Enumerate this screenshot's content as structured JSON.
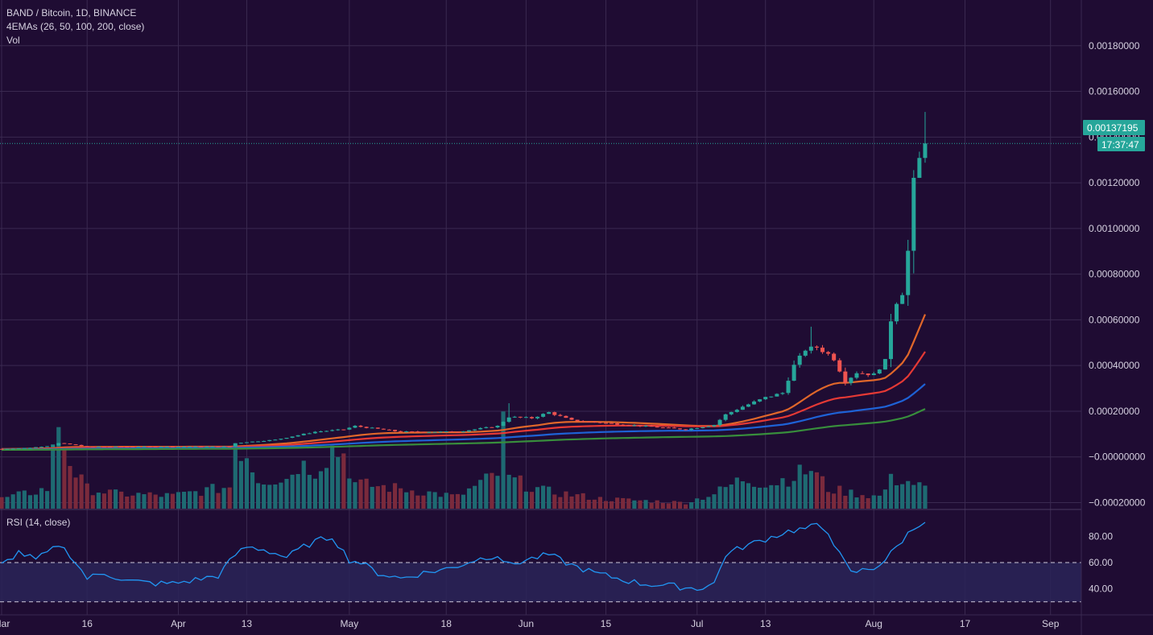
{
  "header": {
    "symbol_line": "BAND / Bitcoin, 1D, BINANCE",
    "ema_line": "4EMAs (26, 50, 100, 200, close)",
    "vol_line": "Vol"
  },
  "rsi_panel": {
    "label": "RSI (14, close)"
  },
  "price_tag": {
    "value": "0.00137195",
    "countdown": "17:37:47"
  },
  "colors": {
    "background": "#1f0c33",
    "grid": "#3a2950",
    "up": "#26a69a",
    "down": "#ef5350",
    "vol_up": "#1e6a72",
    "vol_down": "#7a2a3c",
    "rsi_line": "#2196f3",
    "rsi_band": "#2a2458",
    "ema_26": "#e0672a",
    "ema_50": "#e53935",
    "ema_100": "#1e62d6",
    "ema_200": "#388e3c",
    "text": "#d6d1e0"
  },
  "chart_data": [
    {
      "type": "candlestick",
      "title": "BAND / Bitcoin, 1D, BINANCE",
      "y_axis_labels": [
        "0.00180000",
        "0.00160000",
        "0.00140000",
        "0.00120000",
        "0.00100000",
        "0.00080000",
        "0.00060000",
        "0.00040000",
        "0.00020000",
        "−0.00000000",
        "−0.00020000"
      ],
      "y_axis_values": [
        0.0018,
        0.0016,
        0.0014,
        0.0012,
        0.001,
        0.0008,
        0.0006,
        0.0004,
        0.0002,
        0,
        -0.0002
      ],
      "ylim": [
        -0.00023,
        0.002
      ],
      "x_ticks": [
        {
          "label": "Mar",
          "day": 0
        },
        {
          "label": "16",
          "day": 15
        },
        {
          "label": "Apr",
          "day": 31
        },
        {
          "label": "13",
          "day": 43
        },
        {
          "label": "May",
          "day": 61
        },
        {
          "label": "18",
          "day": 78
        },
        {
          "label": "Jun",
          "day": 92
        },
        {
          "label": "15",
          "day": 106
        },
        {
          "label": "Jul",
          "day": 122
        },
        {
          "label": "13",
          "day": 134
        },
        {
          "label": "Aug",
          "day": 153
        },
        {
          "label": "17",
          "day": 169
        },
        {
          "label": "Sep",
          "day": 184
        }
      ],
      "grid": true,
      "ema_periods": [
        26,
        50,
        100,
        200
      ],
      "last_price": 0.00137195,
      "price_anchors": [
        [
          0,
          3.5e-05
        ],
        [
          5,
          4e-05
        ],
        [
          9,
          5e-05
        ],
        [
          10,
          6e-05
        ],
        [
          12,
          5.5e-05
        ],
        [
          15,
          4.5e-05
        ],
        [
          20,
          4.5e-05
        ],
        [
          30,
          4.5e-05
        ],
        [
          40,
          4.5e-05
        ],
        [
          41,
          6e-05
        ],
        [
          43,
          6.5e-05
        ],
        [
          48,
          7.5e-05
        ],
        [
          55,
          0.00011
        ],
        [
          60,
          0.00012
        ],
        [
          62,
          0.000135
        ],
        [
          70,
          0.00011
        ],
        [
          80,
          0.00011
        ],
        [
          87,
          0.000135
        ],
        [
          89,
          0.000175
        ],
        [
          93,
          0.00017
        ],
        [
          96,
          0.000195
        ],
        [
          100,
          0.00016
        ],
        [
          110,
          0.00014
        ],
        [
          120,
          0.00012
        ],
        [
          125,
          0.00014
        ],
        [
          127,
          0.000185
        ],
        [
          130,
          0.00022
        ],
        [
          134,
          0.00026
        ],
        [
          137,
          0.00028
        ],
        [
          139,
          0.0004
        ],
        [
          141,
          0.00047
        ],
        [
          143,
          0.00048
        ],
        [
          145,
          0.00045
        ],
        [
          146,
          0.00043
        ],
        [
          148,
          0.00033
        ],
        [
          150,
          0.00037
        ],
        [
          153,
          0.00036
        ],
        [
          155,
          0.00042
        ],
        [
          156,
          0.0006
        ],
        [
          157,
          0.00068
        ],
        [
          158,
          0.00072
        ],
        [
          159,
          0.0009
        ],
        [
          160,
          0.0012
        ],
        [
          161,
          0.0013
        ],
        [
          162,
          0.00137195
        ]
      ],
      "volume_profile": [
        [
          0,
          0.1
        ],
        [
          5,
          0.16
        ],
        [
          8,
          0.2
        ],
        [
          10,
          0.9
        ],
        [
          11,
          0.65
        ],
        [
          13,
          0.35
        ],
        [
          15,
          0.2
        ],
        [
          20,
          0.15
        ],
        [
          30,
          0.13
        ],
        [
          40,
          0.22
        ],
        [
          41,
          0.65
        ],
        [
          43,
          0.55
        ],
        [
          45,
          0.3
        ],
        [
          50,
          0.3
        ],
        [
          52,
          0.45
        ],
        [
          55,
          0.4
        ],
        [
          58,
          0.6
        ],
        [
          60,
          0.55
        ],
        [
          62,
          0.25
        ],
        [
          70,
          0.2
        ],
        [
          80,
          0.12
        ],
        [
          87,
          0.35
        ],
        [
          88,
          0.8
        ],
        [
          89,
          0.3
        ],
        [
          95,
          0.18
        ],
        [
          105,
          0.1
        ],
        [
          120,
          0.06
        ],
        [
          125,
          0.15
        ],
        [
          130,
          0.3
        ],
        [
          135,
          0.25
        ],
        [
          140,
          0.35
        ],
        [
          142,
          0.4
        ],
        [
          145,
          0.2
        ],
        [
          150,
          0.15
        ],
        [
          154,
          0.12
        ],
        [
          156,
          0.28
        ],
        [
          158,
          0.3
        ],
        [
          160,
          0.25
        ],
        [
          162,
          0.2
        ]
      ]
    },
    {
      "type": "line",
      "title": "RSI (14, close)",
      "y_axis_labels": [
        "80.00",
        "60.00",
        "40.00"
      ],
      "y_axis_values": [
        80,
        60,
        40
      ],
      "ylim": [
        20,
        100
      ],
      "band": [
        30,
        60
      ],
      "rsi_anchors": [
        [
          0,
          58
        ],
        [
          3,
          68
        ],
        [
          6,
          62
        ],
        [
          9,
          70
        ],
        [
          10,
          74
        ],
        [
          12,
          66
        ],
        [
          15,
          48
        ],
        [
          18,
          52
        ],
        [
          22,
          46
        ],
        [
          27,
          44
        ],
        [
          30,
          44
        ],
        [
          33,
          46
        ],
        [
          38,
          50
        ],
        [
          41,
          66
        ],
        [
          43,
          72
        ],
        [
          46,
          70
        ],
        [
          50,
          64
        ],
        [
          53,
          72
        ],
        [
          55,
          76
        ],
        [
          58,
          80
        ],
        [
          61,
          62
        ],
        [
          63,
          60
        ],
        [
          66,
          52
        ],
        [
          70,
          48
        ],
        [
          74,
          52
        ],
        [
          79,
          56
        ],
        [
          83,
          62
        ],
        [
          87,
          66
        ],
        [
          89,
          58
        ],
        [
          92,
          62
        ],
        [
          96,
          66
        ],
        [
          100,
          58
        ],
        [
          104,
          52
        ],
        [
          108,
          48
        ],
        [
          112,
          44
        ],
        [
          118,
          42
        ],
        [
          122,
          40
        ],
        [
          125,
          44
        ],
        [
          127,
          66
        ],
        [
          130,
          72
        ],
        [
          134,
          78
        ],
        [
          138,
          84
        ],
        [
          141,
          86
        ],
        [
          143,
          88
        ],
        [
          145,
          84
        ],
        [
          147,
          66
        ],
        [
          149,
          52
        ],
        [
          151,
          54
        ],
        [
          153,
          56
        ],
        [
          155,
          62
        ],
        [
          157,
          72
        ],
        [
          159,
          82
        ],
        [
          161,
          90
        ],
        [
          162,
          92
        ]
      ]
    }
  ]
}
